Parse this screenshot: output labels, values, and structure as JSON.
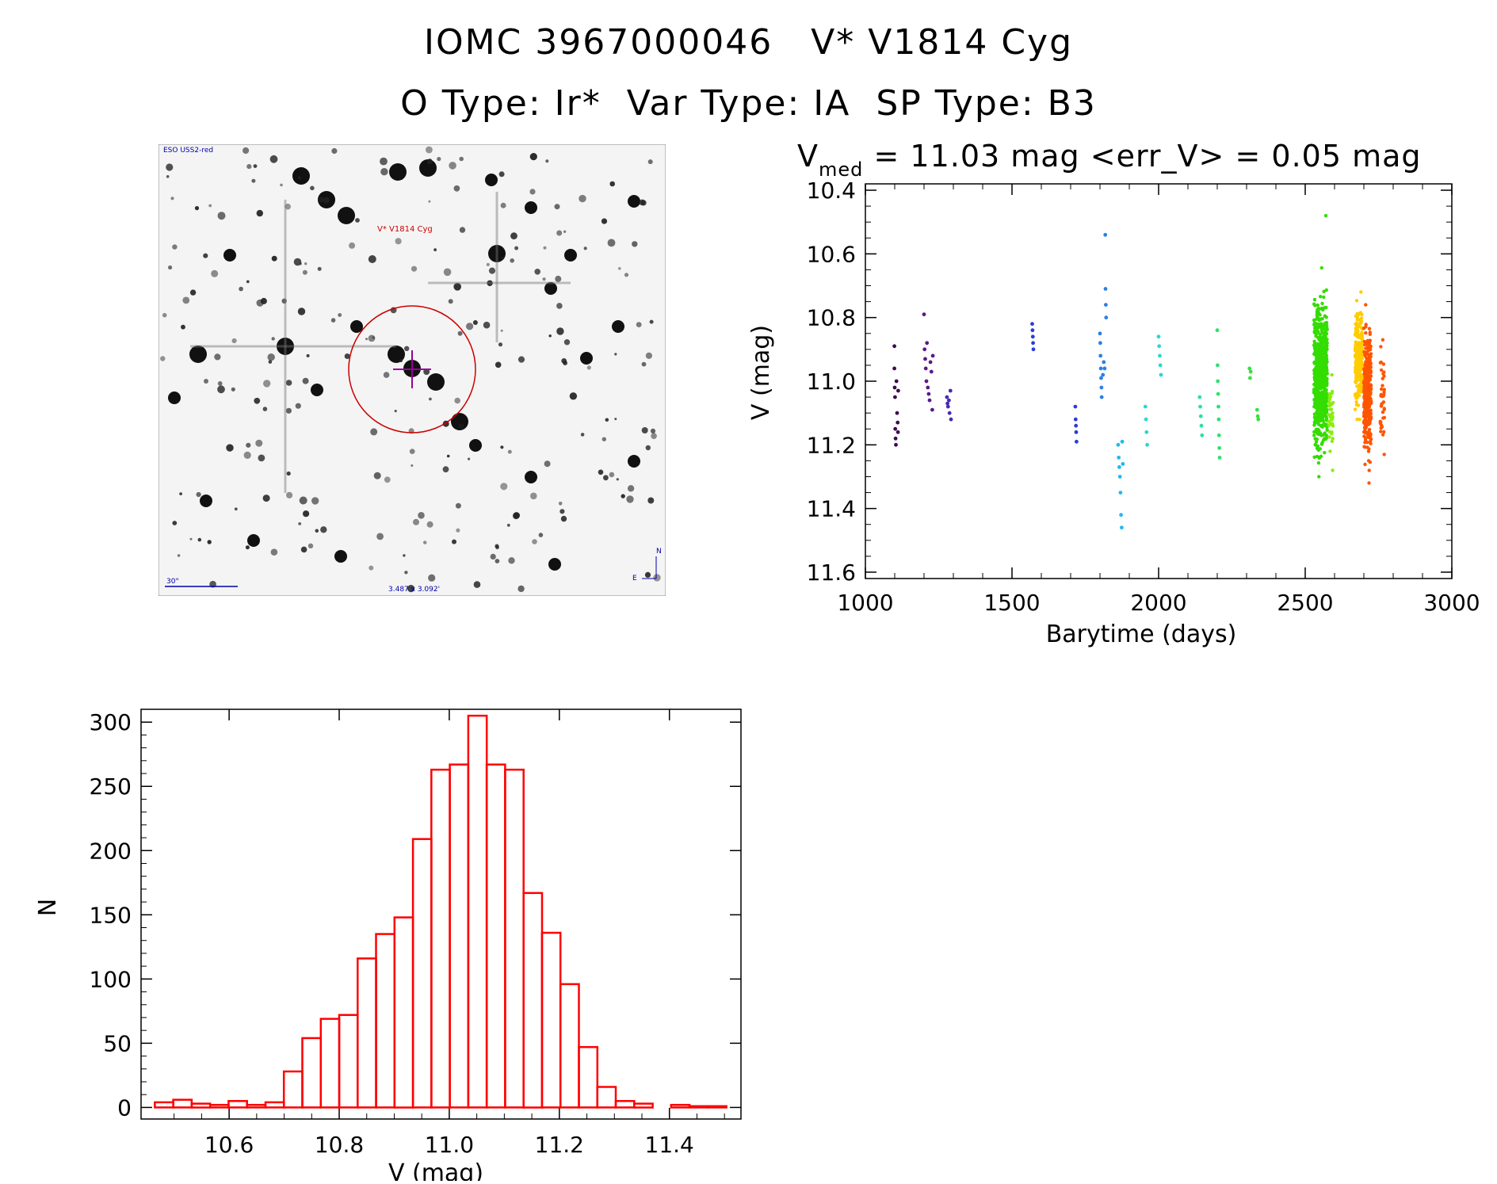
{
  "header": {
    "line1_id": "IOMC 3967000046",
    "line1_name": "V* V1814 Cyg",
    "line2_otype": "O Type: Ir*",
    "line2_vartype": "Var Type: IA",
    "line2_sptype": "SP Type: B3"
  },
  "sky_image": {
    "survey_label": "ESO USS2-red",
    "target_label": "V* V1814 Cyg",
    "scale_label": "30\"",
    "field_label": "3.487 x 3.092'",
    "compass_n": "N",
    "compass_e": "E",
    "colors": {
      "target_circle": "#cc0000",
      "crosshair": "#990099",
      "annotation": "#0000aa"
    }
  },
  "chart_data": [
    {
      "type": "scatter",
      "title_prefix": "V",
      "title_subscript": "med",
      "title_rest": " = 11.03 mag <err_V> = 0.05 mag",
      "xlabel": "Barytime (days)",
      "ylabel": "V (mag)",
      "xlim": [
        1000,
        3000
      ],
      "ylim": [
        11.62,
        10.38
      ],
      "y_reversed": true,
      "xticks": [
        "1000",
        "1500",
        "2000",
        "2500",
        "3000"
      ],
      "yticks": [
        "10.4",
        "10.6",
        "10.8",
        "11.0",
        "11.2",
        "11.4",
        "11.6"
      ],
      "grid": false,
      "series": [
        {
          "color": "#3d0a4f",
          "points": [
            [
              1099,
              10.89
            ],
            [
              1099,
              10.96
            ],
            [
              1100,
              11.02
            ],
            [
              1101,
              11.05
            ],
            [
              1102,
              11.15
            ],
            [
              1103,
              11.18
            ],
            [
              1104,
              11.2
            ],
            [
              1106,
              11.0
            ],
            [
              1108,
              11.1
            ],
            [
              1110,
              11.13
            ],
            [
              1111,
              11.16
            ],
            [
              1112,
              11.03
            ]
          ]
        },
        {
          "color": "#5a1a8a",
          "points": [
            [
              1200,
              10.79
            ],
            [
              1202,
              10.9
            ],
            [
              1204,
              10.93
            ],
            [
              1206,
              10.96
            ],
            [
              1208,
              11.0
            ],
            [
              1210,
              10.88
            ],
            [
              1213,
              11.02
            ],
            [
              1216,
              11.04
            ],
            [
              1219,
              11.06
            ],
            [
              1222,
              10.94
            ],
            [
              1225,
              10.97
            ],
            [
              1228,
              11.09
            ],
            [
              1230,
              10.92
            ]
          ]
        },
        {
          "color": "#4a2ab0",
          "points": [
            [
              1278,
              11.05
            ],
            [
              1280,
              11.07
            ],
            [
              1282,
              11.08
            ],
            [
              1285,
              11.06
            ],
            [
              1287,
              11.1
            ],
            [
              1290,
              11.03
            ],
            [
              1292,
              11.12
            ]
          ]
        },
        {
          "color": "#2a3cd8",
          "points": [
            [
              1569,
              10.82
            ],
            [
              1570,
              10.84
            ],
            [
              1571,
              10.86
            ],
            [
              1572,
              10.88
            ],
            [
              1573,
              10.9
            ]
          ]
        },
        {
          "color": "#2a3cd8",
          "points": [
            [
              1716,
              11.08
            ],
            [
              1717,
              11.12
            ],
            [
              1718,
              11.14
            ],
            [
              1719,
              11.16
            ],
            [
              1720,
              11.19
            ]
          ]
        },
        {
          "color": "#2a80e6",
          "points": [
            [
              1800,
              10.85
            ],
            [
              1801,
              10.88
            ],
            [
              1802,
              10.92
            ],
            [
              1803,
              10.96
            ],
            [
              1804,
              10.99
            ],
            [
              1805,
              11.02
            ],
            [
              1806,
              11.05
            ],
            [
              1810,
              10.98
            ],
            [
              1813,
              10.94
            ],
            [
              1816,
              10.96
            ]
          ]
        },
        {
          "color": "#2a80e6",
          "points": [
            [
              1818,
              10.54
            ],
            [
              1819,
              10.71
            ],
            [
              1820,
              10.76
            ],
            [
              1821,
              10.8
            ]
          ]
        },
        {
          "color": "#22b8f0",
          "points": [
            [
              1862,
              11.2
            ],
            [
              1864,
              11.24
            ],
            [
              1866,
              11.27
            ],
            [
              1868,
              11.3
            ],
            [
              1870,
              11.35
            ],
            [
              1872,
              11.42
            ],
            [
              1874,
              11.46
            ],
            [
              1876,
              11.19
            ],
            [
              1878,
              11.26
            ]
          ]
        },
        {
          "color": "#28d8d0",
          "points": [
            [
              1955,
              11.08
            ],
            [
              1957,
              11.12
            ],
            [
              1959,
              11.16
            ],
            [
              1961,
              11.2
            ]
          ]
        },
        {
          "color": "#28d8d0",
          "points": [
            [
              2000,
              10.86
            ],
            [
              2002,
              10.89
            ],
            [
              2004,
              10.92
            ],
            [
              2006,
              10.95
            ],
            [
              2008,
              10.98
            ]
          ]
        },
        {
          "color": "#28e0a8",
          "points": [
            [
              2140,
              11.05
            ],
            [
              2142,
              11.08
            ],
            [
              2144,
              11.11
            ],
            [
              2146,
              11.14
            ],
            [
              2148,
              11.17
            ]
          ]
        },
        {
          "color": "#30e070",
          "points": [
            [
              2200,
              10.84
            ],
            [
              2201,
              10.95
            ],
            [
              2202,
              11.0
            ],
            [
              2203,
              11.04
            ],
            [
              2204,
              11.08
            ],
            [
              2205,
              11.12
            ],
            [
              2206,
              11.17
            ],
            [
              2207,
              11.21
            ],
            [
              2208,
              11.24
            ]
          ]
        },
        {
          "color": "#38e040",
          "points": [
            [
              2310,
              10.96
            ],
            [
              2312,
              10.99
            ],
            [
              2314,
              10.97
            ],
            [
              2336,
              11.09
            ],
            [
              2338,
              11.11
            ],
            [
              2340,
              11.12
            ]
          ]
        }
      ],
      "dense_bands": [
        {
          "color": "#33dd00",
          "x_from": 2530,
          "x_to": 2575,
          "y_min": 10.48,
          "y_max": 11.3,
          "y_center": 10.98,
          "y_spread": 0.12,
          "count": 700
        },
        {
          "color": "#88ee11",
          "x_from": 2580,
          "x_to": 2595,
          "y_min": 10.98,
          "y_max": 11.28,
          "y_center": 11.1,
          "y_spread": 0.06,
          "count": 40
        },
        {
          "color": "#ffcc00",
          "x_from": 2670,
          "x_to": 2695,
          "y_min": 10.72,
          "y_max": 11.12,
          "y_center": 10.93,
          "y_spread": 0.08,
          "count": 260
        },
        {
          "color": "#ff5500",
          "x_from": 2700,
          "x_to": 2725,
          "y_min": 10.76,
          "y_max": 11.32,
          "y_center": 11.04,
          "y_spread": 0.1,
          "count": 330
        },
        {
          "color": "#ff5500",
          "x_from": 2755,
          "x_to": 2770,
          "y_min": 10.87,
          "y_max": 11.23,
          "y_center": 11.05,
          "y_spread": 0.07,
          "count": 40
        }
      ]
    },
    {
      "type": "histogram",
      "xlabel": "V (mag)",
      "ylabel": "N",
      "xlim": [
        10.44,
        11.53
      ],
      "ylim": [
        -9,
        310
      ],
      "xticks": [
        "10.6",
        "10.8",
        "11.0",
        "11.2",
        "11.4"
      ],
      "yticks": [
        "0",
        "50",
        "100",
        "150",
        "200",
        "250",
        "300"
      ],
      "bin_start": 10.465,
      "bin_width": 0.0335,
      "values": [
        4,
        6,
        3,
        2,
        5,
        2,
        4,
        28,
        54,
        69,
        72,
        116,
        135,
        148,
        209,
        263,
        267,
        305,
        267,
        263,
        167,
        136,
        96,
        47,
        16,
        5,
        3,
        0,
        2,
        1,
        1
      ],
      "bar_color": "#ff0000"
    }
  ]
}
